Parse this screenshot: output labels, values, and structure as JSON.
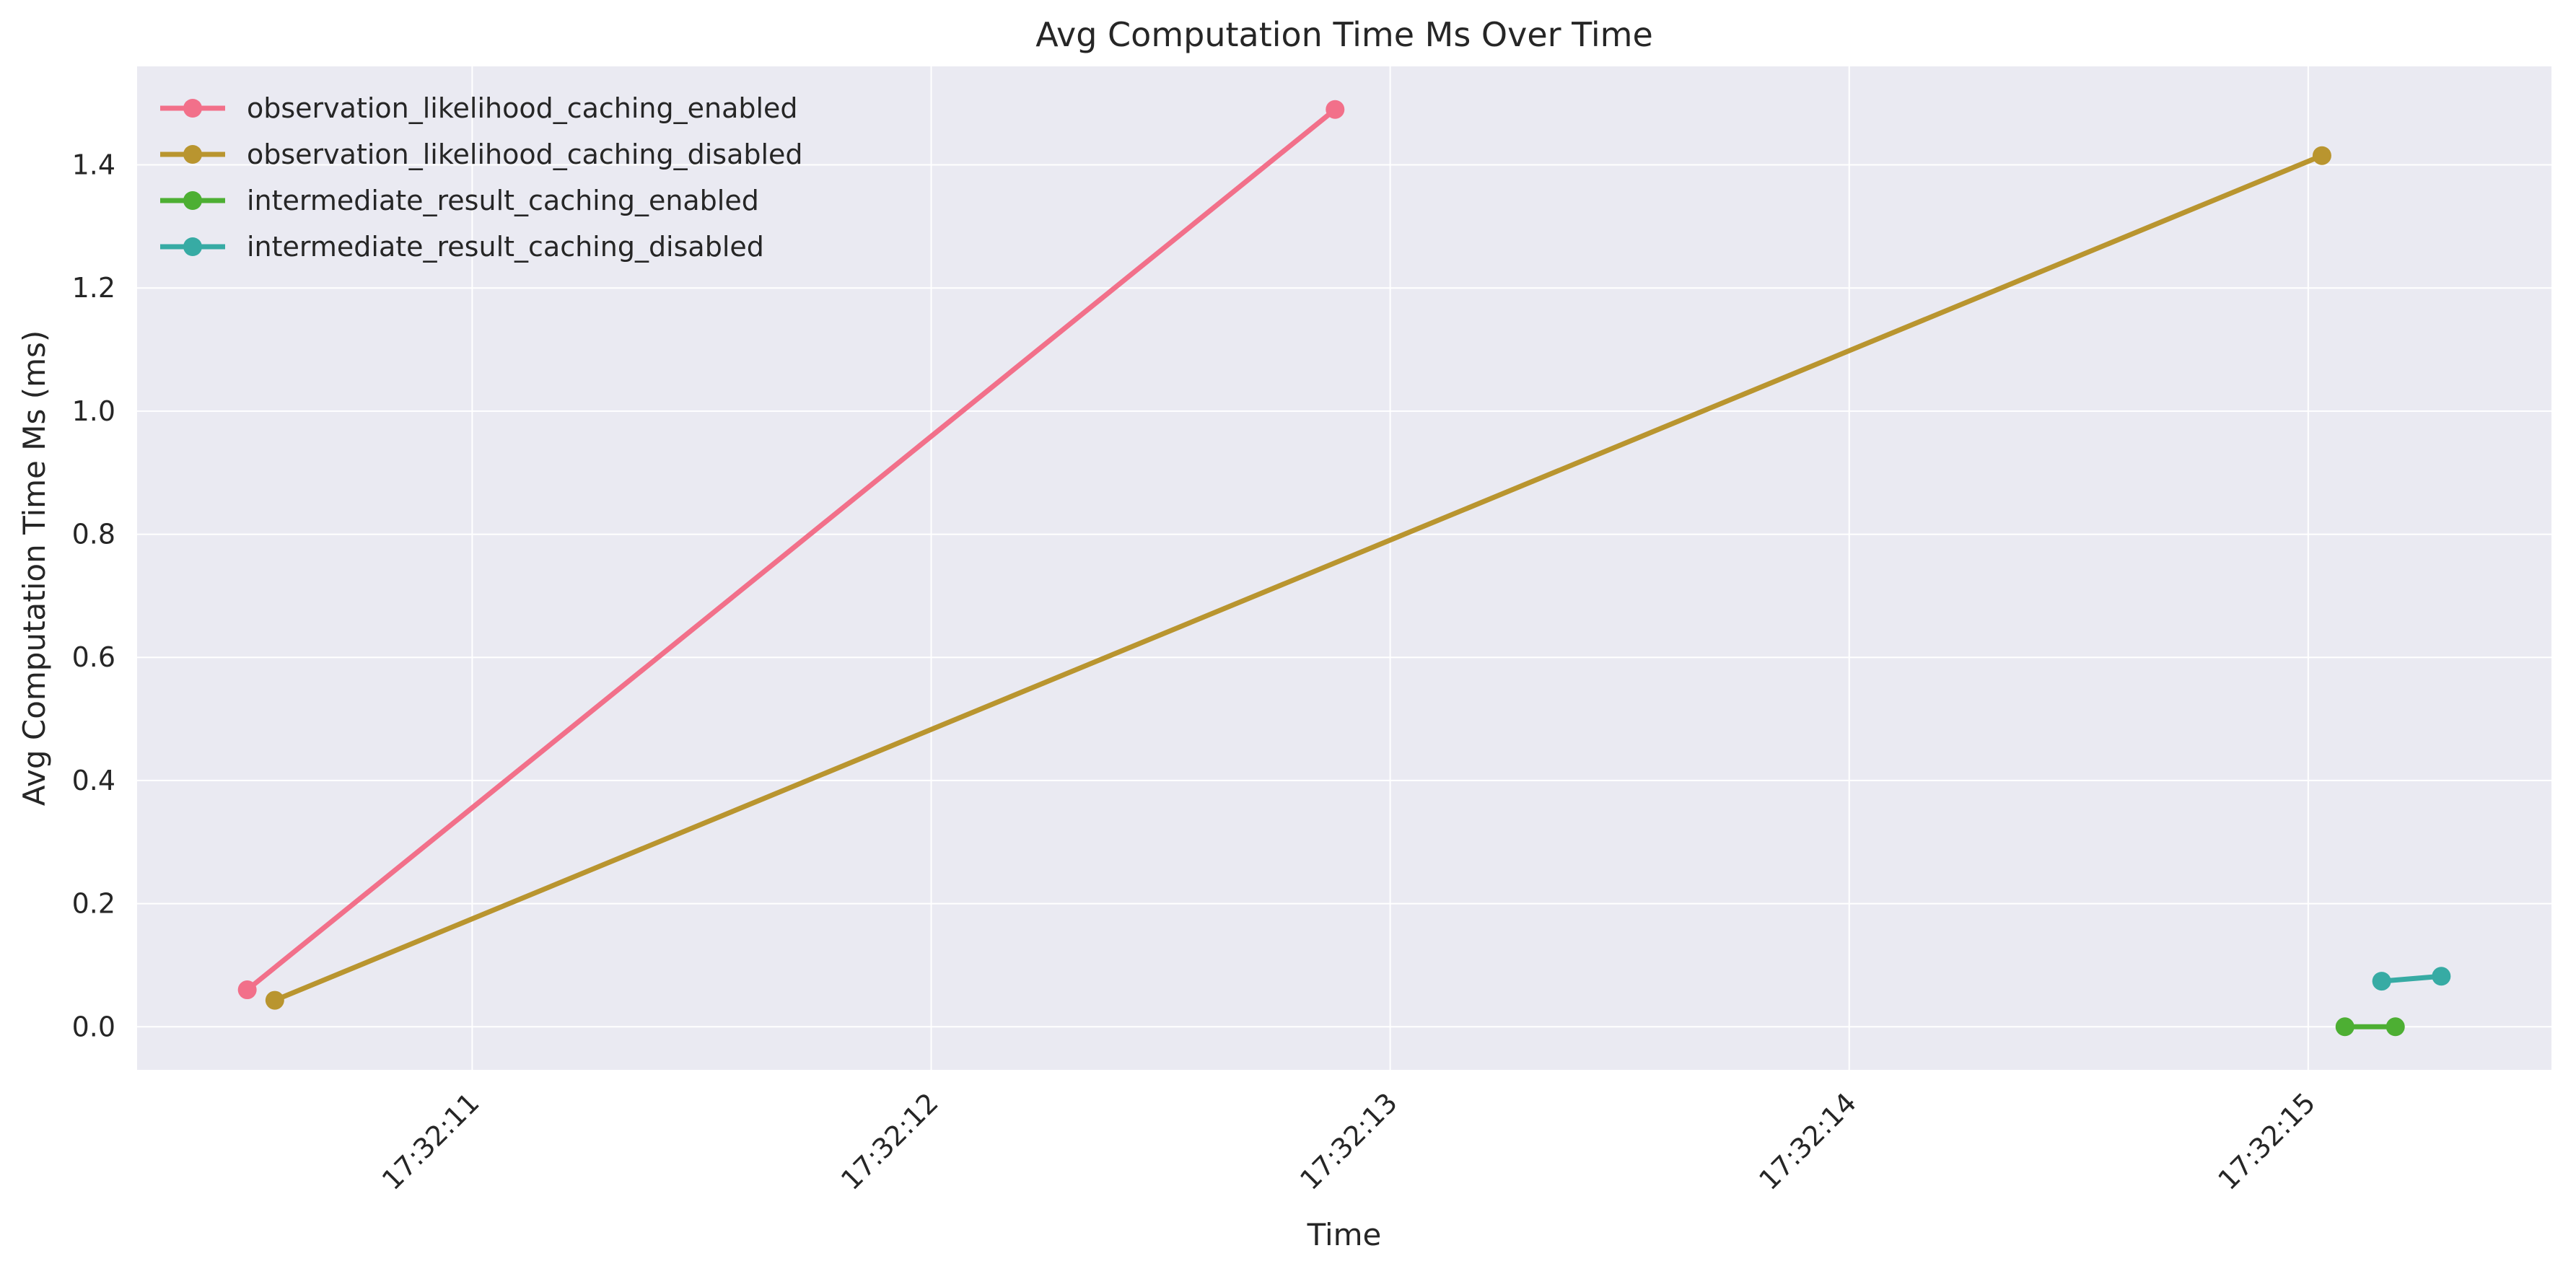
{
  "chart_data": {
    "type": "line",
    "title": "Avg Computation Time Ms Over Time",
    "xlabel": "Time",
    "ylabel": "Avg Computation Time Ms (ms)",
    "xlim": [
      "17:32:10.270",
      "17:32:15.530"
    ],
    "ylim": [
      -0.07,
      1.56
    ],
    "grid": true,
    "legend_position": "top-left",
    "x_ticks": [
      "17:32:11",
      "17:32:12",
      "17:32:13",
      "17:32:14",
      "17:32:15"
    ],
    "y_ticks": [
      "0.0",
      "0.2",
      "0.4",
      "0.6",
      "0.8",
      "1.0",
      "1.2",
      "1.4"
    ],
    "series": [
      {
        "name": "observation_likelihood_caching_enabled",
        "color": "#f2708a",
        "points": [
          {
            "x": "17:32:10.510",
            "y": 0.06
          },
          {
            "x": "17:32:12.880",
            "y": 1.49
          }
        ]
      },
      {
        "name": "observation_likelihood_caching_disabled",
        "color": "#b9952f",
        "points": [
          {
            "x": "17:32:10.570",
            "y": 0.043
          },
          {
            "x": "17:32:15.030",
            "y": 1.415
          }
        ]
      },
      {
        "name": "intermediate_result_caching_enabled",
        "color": "#4daf33",
        "points": [
          {
            "x": "17:32:15.080",
            "y": 0.0
          },
          {
            "x": "17:32:15.190",
            "y": 0.0
          }
        ]
      },
      {
        "name": "intermediate_result_caching_disabled",
        "color": "#37aba4",
        "points": [
          {
            "x": "17:32:15.160",
            "y": 0.074
          },
          {
            "x": "17:32:15.290",
            "y": 0.082
          }
        ]
      }
    ]
  }
}
